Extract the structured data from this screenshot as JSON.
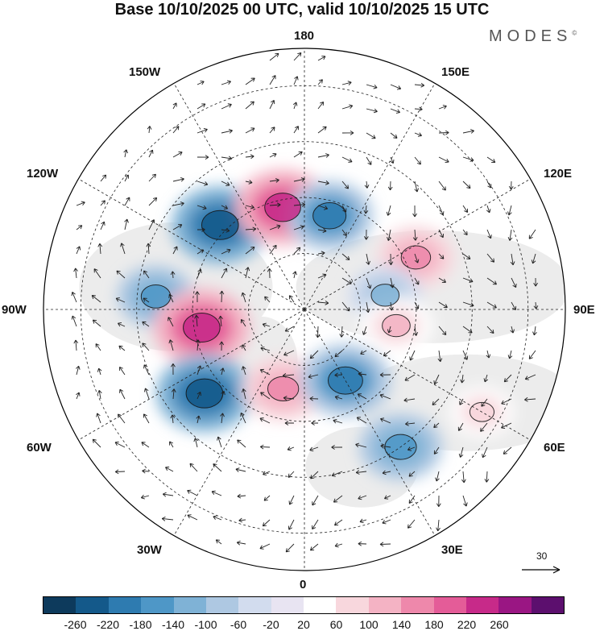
{
  "title": "Base 10/10/2025 00 UTC, valid 10/10/2025 15 UTC",
  "brand": "MODES",
  "brand_mark": "©",
  "longitude_labels": {
    "n": "180",
    "nw": "150W",
    "ne": "150E",
    "wnw": "120W",
    "ene": "120E",
    "w": "90W",
    "e": "90E",
    "wsw": "60W",
    "ese": "60E",
    "sw": "30W",
    "se": "30E",
    "s": "0"
  },
  "reference_vector": {
    "label": "30"
  },
  "colorbar": {
    "colors": [
      "#0d3a5c",
      "#14598a",
      "#2e7bb0",
      "#4e97c7",
      "#7fb2d6",
      "#aec8e2",
      "#d2dcee",
      "#e8e4f2",
      "#ffffff",
      "#f8d7dd",
      "#f4b3c4",
      "#ee88ab",
      "#e45c98",
      "#c72a89",
      "#9a1683",
      "#5c0f6e"
    ],
    "tick_labels": [
      "-260",
      "-220",
      "-180",
      "-140",
      "-100",
      "-60",
      "-20",
      "20",
      "60",
      "100",
      "140",
      "180",
      "220",
      "260"
    ]
  },
  "anomaly_centers": [
    {
      "name": "negative-alaska",
      "lon": -135,
      "lat": 58,
      "value": -250
    },
    {
      "name": "positive-bering",
      "lon": -168,
      "lat": 62,
      "value": 240
    },
    {
      "name": "negative-east-siberia",
      "lon": 165,
      "lat": 64,
      "value": -200
    },
    {
      "name": "negative-north-america",
      "lon": -95,
      "lat": 50,
      "value": -150
    },
    {
      "name": "positive-hudson",
      "lon": -80,
      "lat": 62,
      "value": 250
    },
    {
      "name": "negative-west-atlantic",
      "lon": -50,
      "lat": 55,
      "value": -250
    },
    {
      "name": "positive-greenland",
      "lon": -15,
      "lat": 68,
      "value": 170
    },
    {
      "name": "negative-scandinavia",
      "lon": 30,
      "lat": 68,
      "value": -220
    },
    {
      "name": "positive-siberia",
      "lon": 115,
      "lat": 57,
      "value": 150
    },
    {
      "name": "negative-central-siberia",
      "lon": 100,
      "lat": 68,
      "value": -130
    },
    {
      "name": "positive-west-siberia",
      "lon": 80,
      "lat": 65,
      "value": 130
    },
    {
      "name": "negative-europe",
      "lon": 35,
      "lat": 45,
      "value": -180
    },
    {
      "name": "positive-asia",
      "lon": 60,
      "lat": 35,
      "value": 80
    }
  ]
}
